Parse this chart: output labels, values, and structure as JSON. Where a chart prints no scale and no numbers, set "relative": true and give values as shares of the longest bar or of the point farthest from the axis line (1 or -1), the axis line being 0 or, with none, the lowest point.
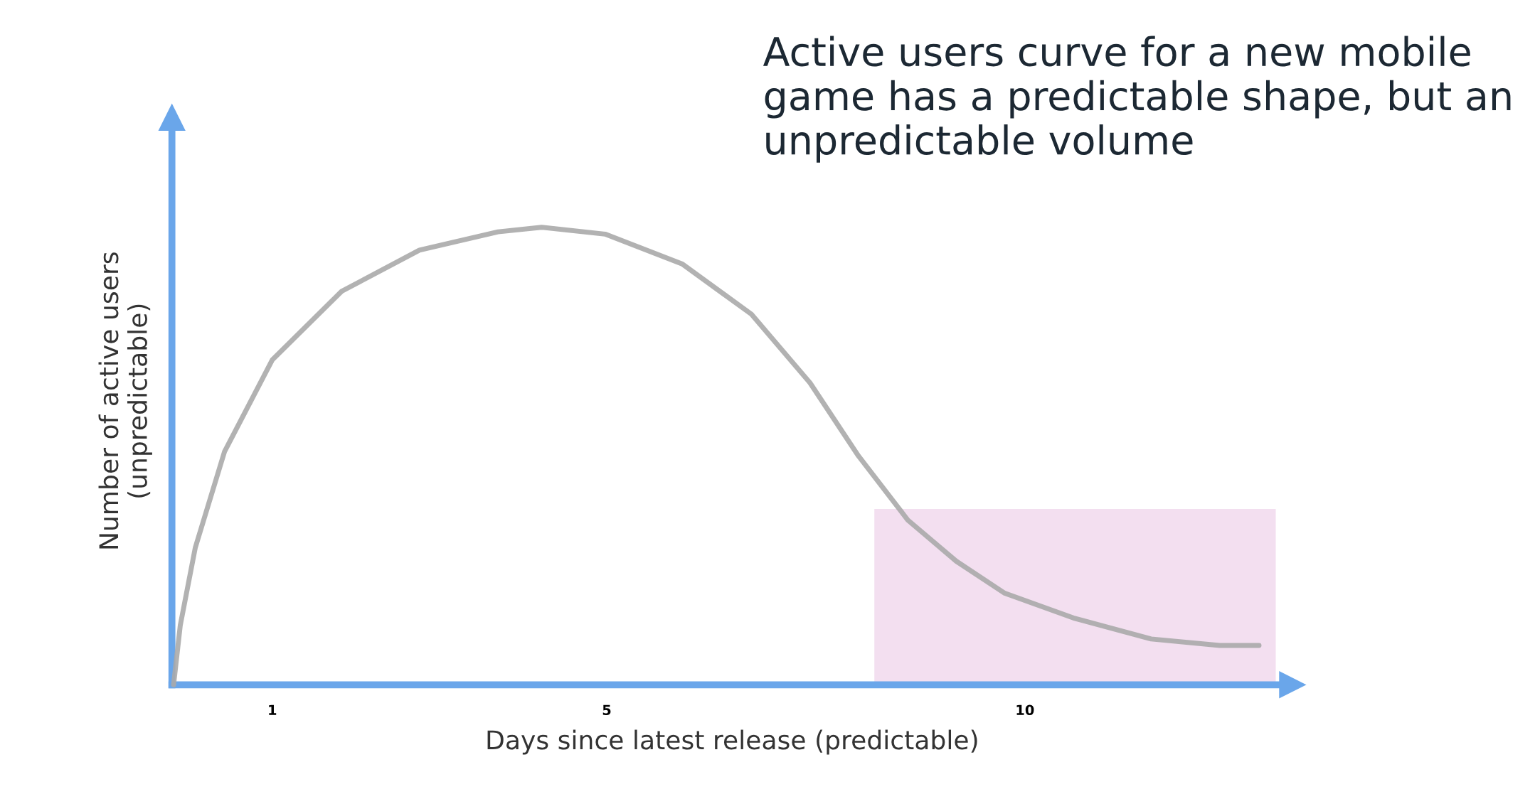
{
  "chart_data": {
    "type": "line",
    "title": "Active users curve for a new mobile game has a predictable shape, but an unpredictable volume",
    "xlabel": "Days since latest release (predictable)",
    "ylabel": "Number of active users\n(unpredictable)",
    "relative": true,
    "xlim": [
      -0.2,
      13.2
    ],
    "xticks": [
      1,
      5,
      10
    ],
    "grid": false,
    "legend": false,
    "marker": "none",
    "line_style": "solid",
    "bands": [
      {
        "axis": "x",
        "from": 8.2,
        "to": 13.0,
        "color": "#f3dff0"
      }
    ],
    "series": [
      {
        "color": "#aaaaaa",
        "x": [
          -0.18,
          -0.1,
          0.08,
          0.43,
          1.0,
          1.83,
          2.76,
          3.7,
          4.22,
          4.98,
          5.9,
          6.73,
          7.43,
          8.01,
          8.6,
          9.18,
          9.76,
          10.58,
          11.51,
          12.33,
          12.8
        ],
        "values": [
          0,
          0.13,
          0.3,
          0.51,
          0.71,
          0.86,
          0.95,
          0.99,
          1.0,
          0.985,
          0.92,
          0.81,
          0.66,
          0.5,
          0.36,
          0.27,
          0.2,
          0.146,
          0.1,
          0.086,
          0.086
        ]
      }
    ]
  }
}
